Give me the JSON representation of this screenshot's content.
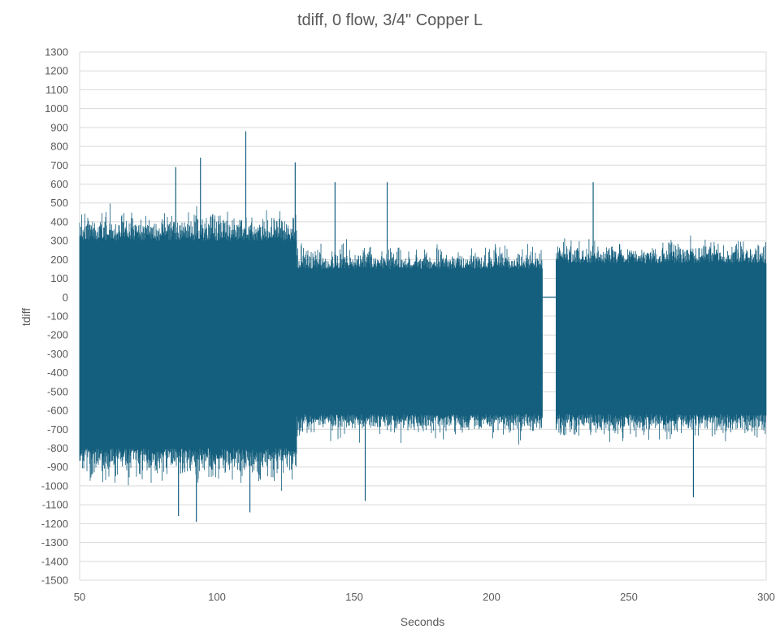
{
  "chart_data": {
    "type": "line",
    "title": "tdiff, 0 flow, 3/4\" Copper L",
    "xlabel": "Seconds",
    "ylabel": "tdiff",
    "xlim": [
      50,
      300
    ],
    "ylim": [
      -1500,
      1300
    ],
    "x_ticks": [
      50,
      100,
      150,
      200,
      250,
      300
    ],
    "y_ticks": [
      1300,
      1200,
      1100,
      1000,
      900,
      800,
      700,
      600,
      500,
      400,
      300,
      200,
      100,
      0,
      -100,
      -200,
      -300,
      -400,
      -500,
      -600,
      -700,
      -800,
      -900,
      -1000,
      -1100,
      -1200,
      -1300,
      -1400,
      -1500
    ],
    "grid": true,
    "legend": "none",
    "series": [
      {
        "color": "#155F7E",
        "segments": [
          {
            "x_start": 50,
            "x_end": 129,
            "typical_high": 300,
            "typical_low": -800,
            "peak_max": 880,
            "peak_min": -1190
          },
          {
            "x_start": 129,
            "x_end": 218.5,
            "typical_high": 150,
            "typical_low": -620,
            "peak_max": 620,
            "peak_min": -1080
          },
          {
            "x_start": 218.5,
            "x_end": 223.5,
            "flat_value": 0
          },
          {
            "x_start": 223.5,
            "x_end": 300,
            "typical_high": 180,
            "typical_low": -620,
            "peak_max": 600,
            "peak_min": -1060
          }
        ],
        "notable_spikes": [
          {
            "x": 110.5,
            "y": 880
          },
          {
            "x": 85,
            "y": 690
          },
          {
            "x": 94,
            "y": 740
          },
          {
            "x": 128.5,
            "y": 715
          },
          {
            "x": 143,
            "y": 610
          },
          {
            "x": 162,
            "y": 610
          },
          {
            "x": 237,
            "y": 610
          },
          {
            "x": 92.5,
            "y": -1190
          },
          {
            "x": 86,
            "y": -1160
          },
          {
            "x": 112,
            "y": -1140
          },
          {
            "x": 154,
            "y": -1080
          },
          {
            "x": 273.5,
            "y": -1060
          }
        ]
      }
    ]
  }
}
